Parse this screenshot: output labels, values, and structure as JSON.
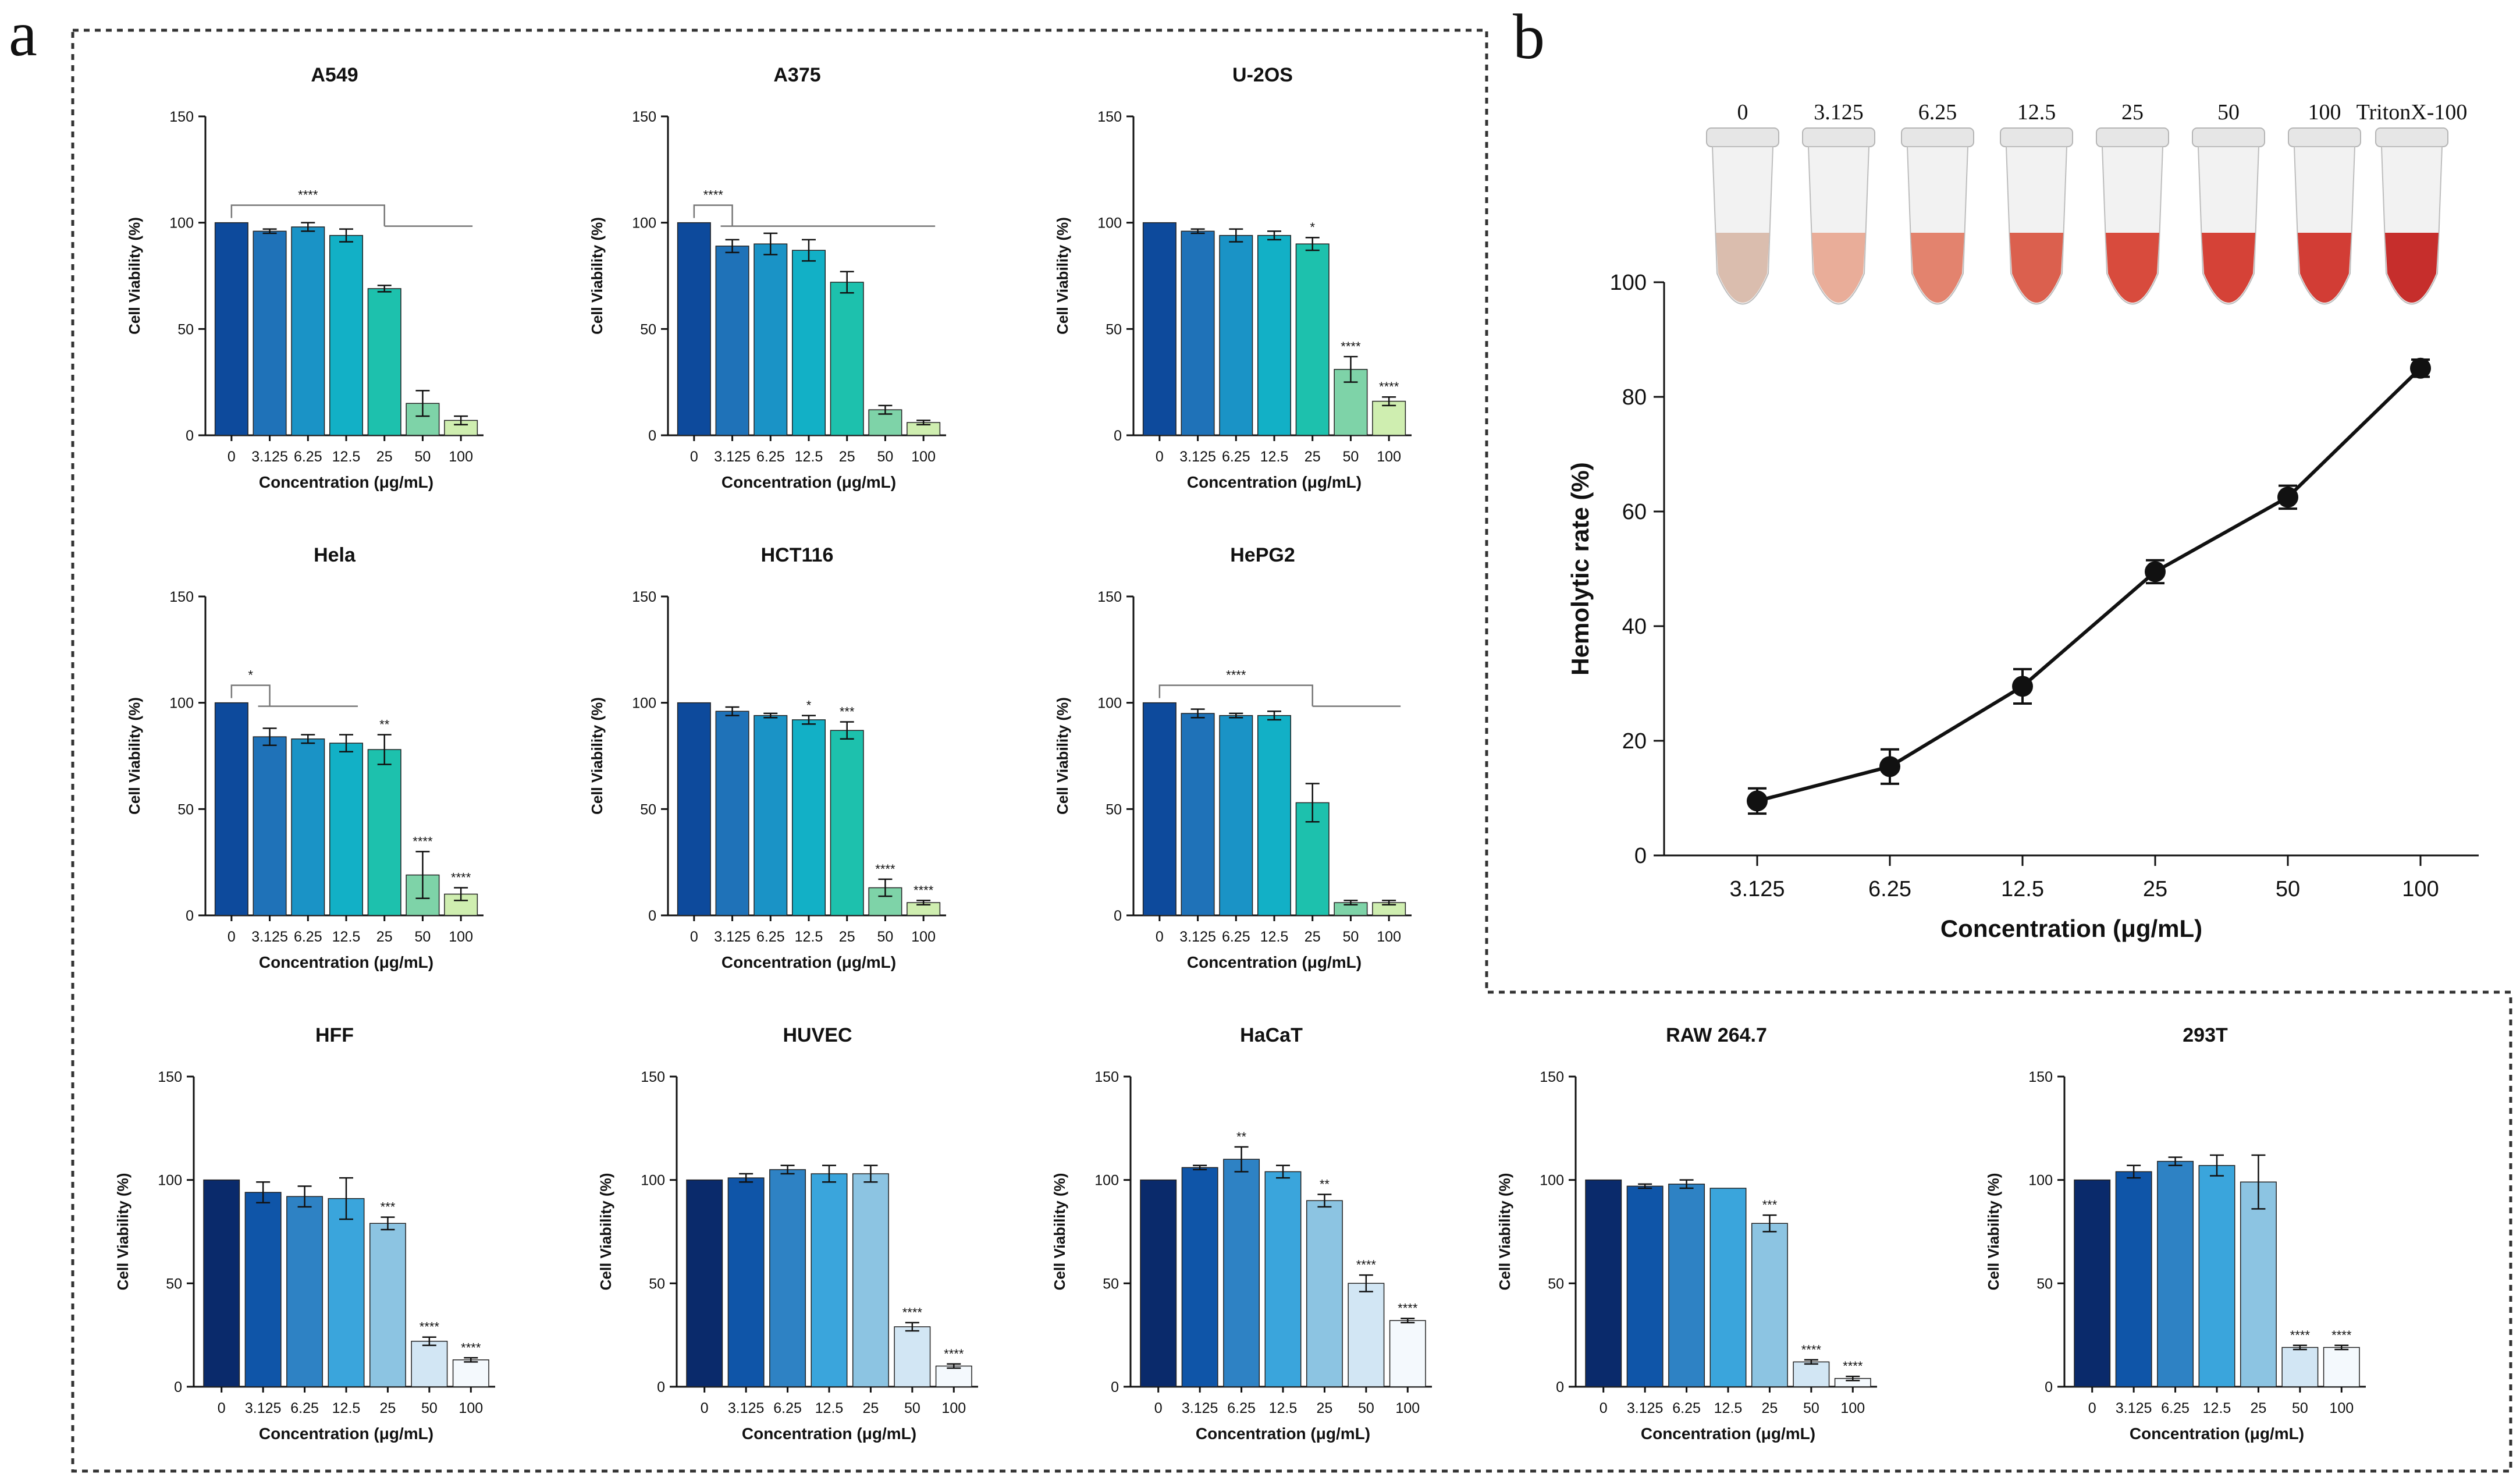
{
  "panels": {
    "a": "a",
    "b": "b"
  },
  "colors": {
    "palette_top": [
      "#0d4a9c",
      "#1f72b8",
      "#1a93c6",
      "#12b0c6",
      "#1dc1ad",
      "#7ed3a8",
      "#cfeeb0",
      "#eef8c6"
    ],
    "palette_bottom": [
      "#0a2a6b",
      "#0f55a8",
      "#2e82c4",
      "#3aa5dc",
      "#8cc4e2",
      "#d2e6f4",
      "#f4f9fd"
    ],
    "line": "#111111"
  },
  "chart_data": [
    {
      "id": "A549",
      "type": "bar",
      "title": "A549",
      "categories": [
        "0",
        "3.125",
        "6.25",
        "12.5",
        "25",
        "50",
        "100"
      ],
      "values": [
        100,
        96,
        98,
        94,
        69,
        15,
        7
      ],
      "errors": [
        0,
        1,
        2,
        3,
        1.5,
        6,
        2
      ],
      "sig": [
        "",
        "",
        "",
        "",
        "",
        "",
        ""
      ],
      "bracket": {
        "label": "****",
        "from": 0,
        "to": 6,
        "split": 4
      },
      "xlabel": "Concentration (μg/mL)",
      "ylabel": "Cell Viability (%)",
      "ylim": [
        0,
        150
      ],
      "yticks": [
        0,
        50,
        100,
        150
      ]
    },
    {
      "id": "A375",
      "type": "bar",
      "title": "A375",
      "categories": [
        "0",
        "3.125",
        "6.25",
        "12.5",
        "25",
        "50",
        "100"
      ],
      "values": [
        100,
        89,
        90,
        87,
        72,
        12,
        6
      ],
      "errors": [
        0,
        3,
        5,
        5,
        5,
        2,
        1
      ],
      "sig": [
        "",
        "",
        "",
        "",
        "",
        "",
        ""
      ],
      "bracket": {
        "label": "****",
        "from": 0,
        "to": 6,
        "split": 1
      },
      "xlabel": "Concentration (μg/mL)",
      "ylabel": "Cell Viability (%)",
      "ylim": [
        0,
        150
      ],
      "yticks": [
        0,
        50,
        100,
        150
      ]
    },
    {
      "id": "U2OS",
      "type": "bar",
      "title": "U-2OS",
      "categories": [
        "0",
        "3.125",
        "6.25",
        "12.5",
        "25",
        "50",
        "100"
      ],
      "values": [
        100,
        96,
        94,
        94,
        90,
        31,
        16
      ],
      "errors": [
        0,
        1,
        3,
        2,
        3,
        6,
        2
      ],
      "sig": [
        "",
        "",
        "",
        "",
        "*",
        "****",
        "****"
      ],
      "bracket": null,
      "xlabel": "Concentration (μg/mL)",
      "ylabel": "Cell Viability (%)",
      "ylim": [
        0,
        150
      ],
      "yticks": [
        0,
        50,
        100,
        150
      ]
    },
    {
      "id": "Hela",
      "type": "bar",
      "title": "Hela",
      "categories": [
        "0",
        "3.125",
        "6.25",
        "12.5",
        "25",
        "50",
        "100"
      ],
      "values": [
        100,
        84,
        83,
        81,
        78,
        19,
        10
      ],
      "errors": [
        0,
        4,
        2,
        4,
        7,
        11,
        3
      ],
      "sig": [
        "",
        "",
        "",
        "",
        "**",
        "****",
        "****"
      ],
      "bracket": {
        "label": "*",
        "from": 0,
        "to": 3,
        "split": 1
      },
      "xlabel": "Concentration (μg/mL)",
      "ylabel": "Cell Viability (%)",
      "ylim": [
        0,
        150
      ],
      "yticks": [
        0,
        50,
        100,
        150
      ]
    },
    {
      "id": "HCT116",
      "type": "bar",
      "title": "HCT116",
      "categories": [
        "0",
        "3.125",
        "6.25",
        "12.5",
        "25",
        "50",
        "100"
      ],
      "values": [
        100,
        96,
        94,
        92,
        87,
        13,
        6
      ],
      "errors": [
        0,
        2,
        1,
        2,
        4,
        4,
        1
      ],
      "sig": [
        "",
        "",
        "",
        "*",
        "***",
        "****",
        "****"
      ],
      "bracket": null,
      "xlabel": "Concentration (μg/mL)",
      "ylabel": "Cell Viability (%)",
      "ylim": [
        0,
        150
      ],
      "yticks": [
        0,
        50,
        100,
        150
      ]
    },
    {
      "id": "HePG2",
      "type": "bar",
      "title": "HePG2",
      "categories": [
        "0",
        "3.125",
        "6.25",
        "12.5",
        "25",
        "50",
        "100"
      ],
      "values": [
        100,
        95,
        94,
        94,
        53,
        6,
        6
      ],
      "errors": [
        0,
        2,
        1,
        2,
        9,
        1,
        1
      ],
      "sig": [
        "",
        "",
        "",
        "",
        "",
        "",
        ""
      ],
      "bracket": {
        "label": "****",
        "from": 0,
        "to": 6,
        "split": 4
      },
      "xlabel": "Concentration (μg/mL)",
      "ylabel": "Cell Viability (%)",
      "ylim": [
        0,
        150
      ],
      "yticks": [
        0,
        50,
        100,
        150
      ]
    },
    {
      "id": "HFF",
      "type": "bar",
      "title": "HFF",
      "categories": [
        "0",
        "3.125",
        "6.25",
        "12.5",
        "25",
        "50",
        "100"
      ],
      "values": [
        100,
        94,
        92,
        91,
        79,
        22,
        13
      ],
      "errors": [
        0,
        5,
        5,
        10,
        3,
        2,
        1
      ],
      "sig": [
        "",
        "",
        "",
        "",
        "***",
        "****",
        "****"
      ],
      "bracket": null,
      "xlabel": "Concentration (μg/mL)",
      "ylabel": "Cell Viability (%)",
      "ylim": [
        0,
        150
      ],
      "yticks": [
        0,
        50,
        100,
        150
      ]
    },
    {
      "id": "HUVEC",
      "type": "bar",
      "title": "HUVEC",
      "categories": [
        "0",
        "3.125",
        "6.25",
        "12.5",
        "25",
        "50",
        "100"
      ],
      "values": [
        100,
        101,
        105,
        103,
        103,
        29,
        10
      ],
      "errors": [
        0,
        2,
        2,
        4,
        4,
        2,
        1
      ],
      "sig": [
        "",
        "",
        "",
        "",
        "",
        "****",
        "****"
      ],
      "bracket": null,
      "xlabel": "Concentration (μg/mL)",
      "ylabel": "Cell Viability (%)",
      "ylim": [
        0,
        150
      ],
      "yticks": [
        0,
        50,
        100,
        150
      ]
    },
    {
      "id": "HaCaT",
      "type": "bar",
      "title": "HaCaT",
      "categories": [
        "0",
        "3.125",
        "6.25",
        "12.5",
        "25",
        "50",
        "100"
      ],
      "values": [
        100,
        106,
        110,
        104,
        90,
        50,
        32
      ],
      "errors": [
        0,
        1,
        6,
        3,
        3,
        4,
        1
      ],
      "sig": [
        "",
        "",
        "**",
        "",
        "**",
        "****",
        "****"
      ],
      "bracket": null,
      "xlabel": "Concentration (μg/mL)",
      "ylabel": "Cell Viability (%)",
      "ylim": [
        0,
        150
      ],
      "yticks": [
        0,
        50,
        100,
        150
      ]
    },
    {
      "id": "RAW2647",
      "type": "bar",
      "title": "RAW 264.7",
      "categories": [
        "0",
        "3.125",
        "6.25",
        "12.5",
        "25",
        "50",
        "100"
      ],
      "values": [
        100,
        97,
        98,
        96,
        79,
        12,
        4
      ],
      "errors": [
        0,
        1,
        2,
        0,
        4,
        1,
        1
      ],
      "sig": [
        "",
        "",
        "",
        "",
        "***",
        "****",
        "****"
      ],
      "bracket": null,
      "xlabel": "Concentration (μg/mL)",
      "ylabel": "Cell Viability (%)",
      "ylim": [
        0,
        150
      ],
      "yticks": [
        0,
        50,
        100,
        150
      ]
    },
    {
      "id": "293T",
      "type": "bar",
      "title": "293T",
      "categories": [
        "0",
        "3.125",
        "6.25",
        "12.5",
        "25",
        "50",
        "100"
      ],
      "values": [
        100,
        104,
        109,
        107,
        99,
        19,
        19
      ],
      "errors": [
        0,
        3,
        2,
        5,
        13,
        1,
        1
      ],
      "sig": [
        "",
        "",
        "",
        "",
        "",
        "****",
        "****"
      ],
      "bracket": null,
      "xlabel": "Concentration (μg/mL)",
      "ylabel": "Cell Viability (%)",
      "ylim": [
        0,
        150
      ],
      "yticks": [
        0,
        50,
        100,
        150
      ]
    },
    {
      "id": "hemolysis",
      "type": "line",
      "title": "",
      "x": [
        "3.125",
        "6.25",
        "12.5",
        "25",
        "50",
        "100"
      ],
      "y": [
        9.5,
        15.5,
        29.5,
        49.5,
        62.5,
        85
      ],
      "errors": [
        2.2,
        3,
        3,
        2,
        2,
        1.5
      ],
      "xlabel": "Concentration (μg/mL)",
      "ylabel": "Hemolytic rate (%)",
      "ylim": [
        0,
        100
      ],
      "yticks": [
        0,
        20,
        40,
        60,
        80,
        100
      ]
    }
  ],
  "tubes": {
    "labels": [
      "0",
      "3.125",
      "6.25",
      "12.5",
      "25",
      "50",
      "100",
      "TritonX-100"
    ],
    "colors": [
      "#d8b9a8",
      "#e8a791",
      "#e27a63",
      "#d95440",
      "#d63d2e",
      "#d23327",
      "#cf2e25",
      "#c21d1b"
    ]
  }
}
